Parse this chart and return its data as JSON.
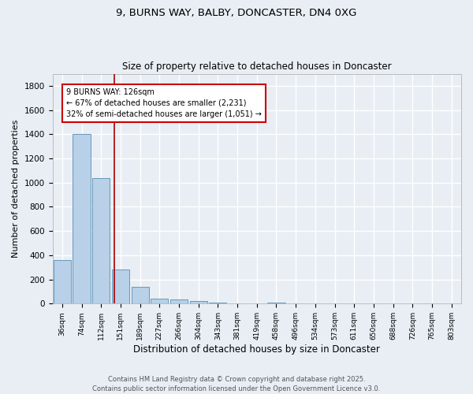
{
  "title1": "9, BURNS WAY, BALBY, DONCASTER, DN4 0XG",
  "title2": "Size of property relative to detached houses in Doncaster",
  "xlabel": "Distribution of detached houses by size in Doncaster",
  "ylabel": "Number of detached properties",
  "bar_labels": [
    "36sqm",
    "74sqm",
    "112sqm",
    "151sqm",
    "189sqm",
    "227sqm",
    "266sqm",
    "304sqm",
    "343sqm",
    "381sqm",
    "419sqm",
    "458sqm",
    "496sqm",
    "534sqm",
    "573sqm",
    "611sqm",
    "650sqm",
    "688sqm",
    "726sqm",
    "765sqm",
    "803sqm"
  ],
  "bar_values": [
    360,
    1400,
    1040,
    285,
    140,
    42,
    38,
    22,
    12,
    0,
    0,
    12,
    0,
    0,
    0,
    0,
    0,
    0,
    0,
    0,
    0
  ],
  "bar_color": "#b8d0e8",
  "bar_edge_color": "#6699bb",
  "bg_color": "#e8eef4",
  "grid_color": "#ffffff",
  "red_line_x": 2.68,
  "annotation_text": "9 BURNS WAY: 126sqm\n← 67% of detached houses are smaller (2,231)\n32% of semi-detached houses are larger (1,051) →",
  "annotation_box_color": "#ffffff",
  "annotation_box_edge": "#cc0000",
  "ylim": [
    0,
    1900
  ],
  "yticks": [
    0,
    200,
    400,
    600,
    800,
    1000,
    1200,
    1400,
    1600,
    1800
  ],
  "footer1": "Contains HM Land Registry data © Crown copyright and database right 2025.",
  "footer2": "Contains public sector information licensed under the Open Government Licence v3.0."
}
